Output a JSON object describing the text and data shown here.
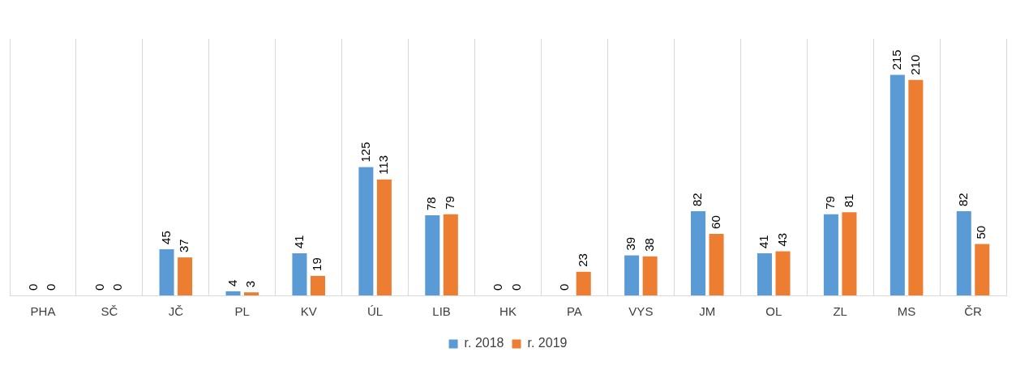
{
  "chart_data": {
    "type": "bar",
    "categories": [
      "PHA",
      "SČ",
      "JČ",
      "PL",
      "KV",
      "ÚL",
      "LIB",
      "HK",
      "PA",
      "VYS",
      "JM",
      "OL",
      "ZL",
      "MS",
      "ČR"
    ],
    "series": [
      {
        "name": "r. 2018",
        "color": "#5b9bd5",
        "values": [
          0,
          0,
          45,
          4,
          41,
          125,
          78,
          0,
          0,
          39,
          82,
          41,
          79,
          215,
          82
        ]
      },
      {
        "name": "r. 2019",
        "color": "#ed7d31",
        "values": [
          0,
          0,
          37,
          3,
          19,
          113,
          79,
          0,
          23,
          38,
          60,
          43,
          81,
          210,
          50
        ]
      }
    ],
    "data_labels": true,
    "grid": "x",
    "legend": "bottom"
  }
}
